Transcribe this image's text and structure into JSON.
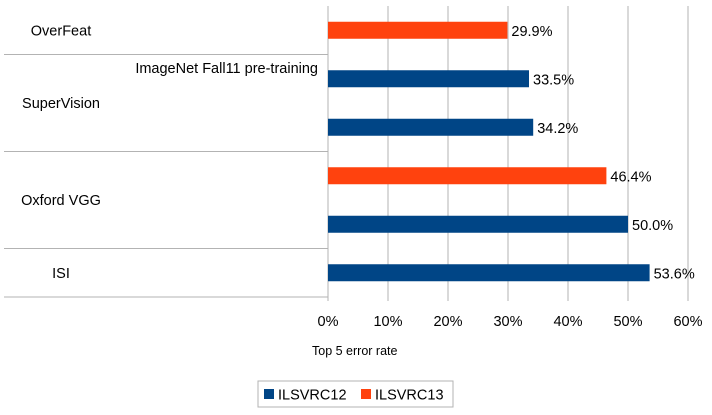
{
  "chart_data": {
    "type": "bar",
    "orientation": "horizontal",
    "title": "",
    "xlabel": "Top 5 error rate",
    "ylabel": "",
    "xlim": [
      0,
      60
    ],
    "x_ticks": [
      "0%",
      "10%",
      "20%",
      "30%",
      "40%",
      "50%",
      "60%"
    ],
    "grid": true,
    "legend_position": "bottom",
    "groups": [
      {
        "name": "OverFeat",
        "rows": 1
      },
      {
        "name": "SuperVision",
        "rows": 2
      },
      {
        "name": "Oxford VGG",
        "rows": 2
      },
      {
        "name": "ISI",
        "rows": 1
      }
    ],
    "series": [
      {
        "name": "ILSVRC12",
        "color": "#004586"
      },
      {
        "name": "ILSVRC13",
        "color": "#ff420e"
      }
    ],
    "bars": [
      {
        "group": "OverFeat",
        "series": "ILSVRC13",
        "value": 29.9,
        "label": "29.9%"
      },
      {
        "group": "SuperVision",
        "series": "ILSVRC12",
        "value": 33.5,
        "label": "33.5%",
        "annotation": "ImageNet Fall11 pre-training"
      },
      {
        "group": "SuperVision",
        "series": "ILSVRC12",
        "value": 34.2,
        "label": "34.2%"
      },
      {
        "group": "Oxford VGG",
        "series": "ILSVRC13",
        "value": 46.4,
        "label": "46.4%"
      },
      {
        "group": "Oxford VGG",
        "series": "ILSVRC12",
        "value": 50.0,
        "label": "50.0%"
      },
      {
        "group": "ISI",
        "series": "ILSVRC12",
        "value": 53.6,
        "label": "53.6%"
      }
    ]
  }
}
